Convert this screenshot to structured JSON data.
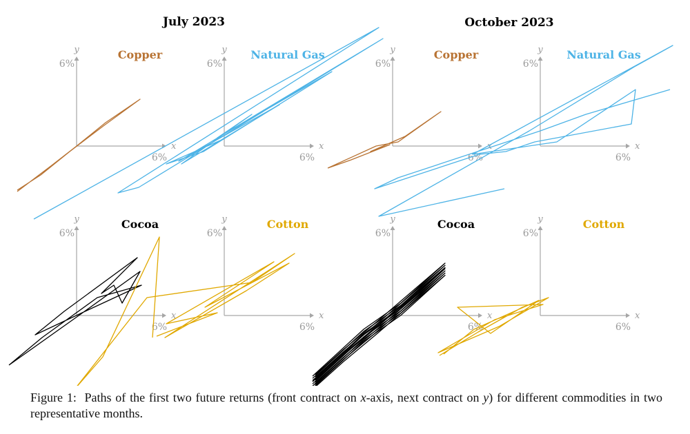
{
  "figure": {
    "caption_prefix": "Figure 1:",
    "caption_part1": "Paths of the first two future returns (front contract on ",
    "caption_var_x": "x",
    "caption_part2": "-axis, next contract on ",
    "caption_var_y": "y",
    "caption_part3": ") for different commodities in two representative months."
  },
  "colors": {
    "Copper": "#b87333",
    "Natural Gas": "#4db3e6",
    "Cocoa": "#000000",
    "Cotton": "#e0a800"
  },
  "chart_data": [
    {
      "type": "line",
      "month": "July 2023",
      "commodity": "Copper",
      "xlabel": "x",
      "ylabel": "y",
      "xtick": "6%",
      "ytick": "6%",
      "xlim": [
        -6,
        6
      ],
      "ylim": [
        -6,
        6
      ],
      "x": [
        -4.3,
        -1.8,
        0.0,
        2.1,
        4.6,
        2.0,
        -0.5,
        -2.6,
        -4.3
      ],
      "y": [
        -3.3,
        -1.4,
        0.0,
        1.7,
        3.4,
        1.5,
        -0.4,
        -2.1,
        -3.2
      ]
    },
    {
      "type": "line",
      "month": "July 2023",
      "commodity": "Natural Gas",
      "xlabel": "x",
      "ylabel": "y",
      "xtick": "6%",
      "ytick": "6%",
      "xlim": [
        -6,
        6
      ],
      "ylim": [
        -6,
        6
      ],
      "x": [
        -13.8,
        11.2,
        -7.7,
        -6.2,
        11.5,
        -3.3,
        4.0,
        -3.1,
        2.0,
        -0.5,
        7.8,
        -1.5,
        -4.2,
        -0.3
      ],
      "y": [
        -5.3,
        8.6,
        -3.4,
        -3.0,
        7.8,
        -1.1,
        3.0,
        -1.3,
        2.3,
        0.6,
        5.4,
        -0.4,
        -1.3,
        0.4
      ]
    },
    {
      "type": "line",
      "month": "October 2023",
      "commodity": "Copper",
      "xlabel": "x",
      "ylabel": "y",
      "xtick": "6%",
      "ytick": "6%",
      "xlim": [
        -6,
        6
      ],
      "ylim": [
        -6,
        6
      ],
      "x": [
        -4.7,
        -1.2,
        0.4,
        3.5,
        0.9,
        -1.6,
        -0.2,
        -3.0,
        -4.7
      ],
      "y": [
        -1.6,
        0.0,
        0.3,
        2.5,
        0.7,
        -0.4,
        0.1,
        -1.0,
        -1.6
      ],
      "note": "Short path concentrated near the origin with a small loop"
    },
    {
      "type": "line",
      "month": "October 2023",
      "commodity": "Natural Gas",
      "xlabel": "x",
      "ylabel": "y",
      "xtick": "6%",
      "ytick": "6%",
      "xlim": [
        -6,
        6
      ],
      "ylim": [
        -6,
        6
      ],
      "x": [
        -2.6,
        -11.7,
        -0.8,
        6.9,
        9.6,
        -4.9,
        1.2,
        6.9,
        6.6,
        -0.4,
        -2.5,
        -4.4,
        -12.0,
        -10.3,
        0.0,
        3.3,
        9.4
      ],
      "y": [
        -3.1,
        -5.1,
        1.1,
        5.8,
        7.3,
        -0.6,
        0.3,
        4.1,
        1.6,
        0.3,
        -0.4,
        -0.6,
        -3.1,
        -2.3,
        1.1,
        2.3,
        4.1
      ]
    },
    {
      "type": "line",
      "month": "July 2023",
      "commodity": "Cocoa",
      "xlabel": "x",
      "ylabel": "y",
      "xtick": "6%",
      "ytick": "6%",
      "xlim": [
        -6,
        6
      ],
      "ylim": [
        -6,
        6
      ],
      "x": [
        -4.9,
        0.3,
        4.6,
        3.3,
        2.7,
        1.8,
        4.4,
        -0.9,
        -3.0,
        0.4,
        4.7,
        1.5,
        -2.5,
        -4.9
      ],
      "y": [
        -3.6,
        0.1,
        3.2,
        0.9,
        2.2,
        1.6,
        4.2,
        0.3,
        -1.4,
        0.2,
        2.2,
        1.3,
        -1.6,
        -3.6
      ]
    },
    {
      "type": "line",
      "month": "July 2023",
      "commodity": "Cotton",
      "xlabel": "x",
      "ylabel": "y",
      "xtick": "6%",
      "ytick": "6%",
      "xlim": [
        -6,
        6
      ],
      "ylim": [
        -6,
        6
      ],
      "x": [
        -5.2,
        -4.7,
        -8.8,
        -10.8,
        -5.6,
        2.0,
        5.1,
        -4.3,
        1.6,
        4.7,
        -1.4,
        3.6,
        -4.2,
        -0.5,
        -4.9
      ],
      "y": [
        -1.6,
        5.7,
        -3.0,
        -5.3,
        1.3,
        2.4,
        4.5,
        -1.6,
        1.8,
        3.8,
        0.6,
        3.9,
        -0.6,
        0.2,
        -1.5
      ]
    },
    {
      "type": "line",
      "month": "October 2023",
      "commodity": "Cocoa",
      "xlabel": "x",
      "ylabel": "y",
      "xtick": "6%",
      "ytick": "6%",
      "xlim": [
        -6,
        6
      ],
      "ylim": [
        -6,
        6
      ],
      "x": [
        -5.8,
        -2.1,
        0.6,
        3.8,
        1.7,
        -1.2,
        -3.6,
        -5.6
      ],
      "y": [
        -4.8,
        -1.4,
        0.5,
        3.4,
        1.6,
        -0.9,
        -2.9,
        -4.7
      ],
      "note": "Densely repeated path along the diagonal"
    },
    {
      "type": "line",
      "month": "October 2023",
      "commodity": "Cotton",
      "xlabel": "x",
      "ylabel": "y",
      "xtick": "6%",
      "ytick": "6%",
      "xlim": [
        -6,
        6
      ],
      "ylim": [
        -6,
        6
      ],
      "x": [
        -7.3,
        -4.5,
        -1.3,
        0.6,
        -3.0,
        -7.4,
        -3.3,
        0.2,
        -6.0,
        -3.6,
        -0.1,
        -4.8,
        -7.0
      ],
      "y": [
        -2.9,
        -1.2,
        0.6,
        1.3,
        -0.8,
        -2.7,
        -0.3,
        0.8,
        0.6,
        -1.3,
        1.1,
        -1.0,
        -2.8
      ]
    }
  ]
}
